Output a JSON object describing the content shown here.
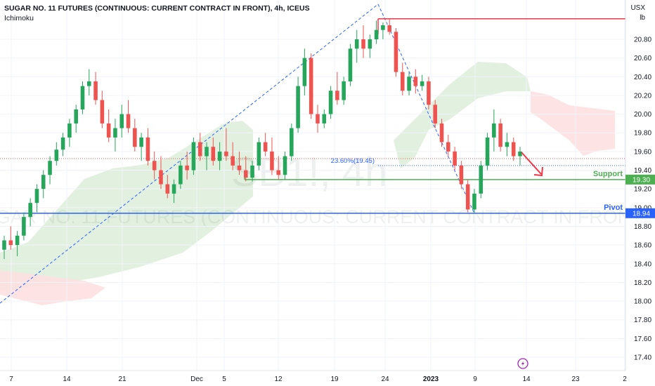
{
  "header": {
    "title": "SUGAR NO. 11 FUTURES (CONTINUOUS: CURRENT CONTRACT IN FRONT), 4h, ICEUS",
    "indicator": "Ichimoku"
  },
  "watermark": {
    "symbol": "SB1!, 4h",
    "description": "SUGAR NO. 11 FUTURES (CONTINUOUS: CURRENT CONTRACT IN FRONT)"
  },
  "axis": {
    "currency": "USX",
    "unit": "lb"
  },
  "colors": {
    "up": "#26a65b",
    "down": "#ef5350",
    "support": "#4caf50",
    "pivot": "#2962ff",
    "resistance": "#f23645",
    "fib": "#2962ff",
    "cloud_bull": "#dff0dc",
    "cloud_bear": "#fde0e0"
  },
  "levels": {
    "support": {
      "label": "Support",
      "price": 19.3,
      "badge": "19.30"
    },
    "pivot": {
      "label": "Pivot",
      "price": 18.94,
      "badge": "18.94"
    },
    "resistance": {
      "price": 21.02
    },
    "fib": {
      "label": "23.60%(19.45)",
      "price": 19.45
    }
  },
  "chart_data": {
    "type": "candlestick",
    "y_ticks": [
      "17.40",
      "17.60",
      "17.80",
      "18.00",
      "18.20",
      "18.40",
      "18.60",
      "18.80",
      "19.00",
      "19.20",
      "19.40",
      "19.60",
      "19.80",
      "20.00",
      "20.20",
      "20.40",
      "20.60",
      "20.80"
    ],
    "x_ticks": [
      "7",
      "14",
      "21",
      "Dec",
      "5",
      "12",
      "19",
      "24",
      "2023",
      "9",
      "14",
      "23",
      "2"
    ],
    "y_range": [
      17.25,
      21.05
    ],
    "series": [
      {
        "o": 18.55,
        "h": 18.7,
        "l": 18.45,
        "c": 18.65
      },
      {
        "o": 18.65,
        "h": 18.8,
        "l": 18.55,
        "c": 18.6
      },
      {
        "o": 18.6,
        "h": 18.75,
        "l": 18.48,
        "c": 18.7
      },
      {
        "o": 18.7,
        "h": 18.95,
        "l": 18.65,
        "c": 18.9
      },
      {
        "o": 18.9,
        "h": 19.1,
        "l": 18.8,
        "c": 19.05
      },
      {
        "o": 19.05,
        "h": 19.25,
        "l": 18.95,
        "c": 19.2
      },
      {
        "o": 19.2,
        "h": 19.4,
        "l": 19.1,
        "c": 19.35
      },
      {
        "o": 19.35,
        "h": 19.55,
        "l": 19.25,
        "c": 19.5
      },
      {
        "o": 19.5,
        "h": 19.7,
        "l": 19.45,
        "c": 19.62
      },
      {
        "o": 19.62,
        "h": 19.8,
        "l": 19.55,
        "c": 19.75
      },
      {
        "o": 19.75,
        "h": 19.95,
        "l": 19.65,
        "c": 19.9
      },
      {
        "o": 19.9,
        "h": 20.1,
        "l": 19.8,
        "c": 20.05
      },
      {
        "o": 20.05,
        "h": 20.35,
        "l": 20.0,
        "c": 20.3
      },
      {
        "o": 20.3,
        "h": 20.48,
        "l": 20.2,
        "c": 20.35
      },
      {
        "o": 20.35,
        "h": 20.45,
        "l": 20.1,
        "c": 20.15
      },
      {
        "o": 20.15,
        "h": 20.25,
        "l": 19.85,
        "c": 19.9
      },
      {
        "o": 19.9,
        "h": 20.05,
        "l": 19.7,
        "c": 19.75
      },
      {
        "o": 19.75,
        "h": 19.95,
        "l": 19.6,
        "c": 19.85
      },
      {
        "o": 19.85,
        "h": 20.1,
        "l": 19.75,
        "c": 20.0
      },
      {
        "o": 20.0,
        "h": 20.15,
        "l": 19.8,
        "c": 19.85
      },
      {
        "o": 19.85,
        "h": 19.95,
        "l": 19.6,
        "c": 19.65
      },
      {
        "o": 19.65,
        "h": 19.8,
        "l": 19.5,
        "c": 19.75
      },
      {
        "o": 19.75,
        "h": 19.85,
        "l": 19.45,
        "c": 19.5
      },
      {
        "o": 19.5,
        "h": 19.6,
        "l": 19.3,
        "c": 19.4
      },
      {
        "o": 19.4,
        "h": 19.55,
        "l": 19.2,
        "c": 19.25
      },
      {
        "o": 19.25,
        "h": 19.35,
        "l": 19.1,
        "c": 19.15
      },
      {
        "o": 19.15,
        "h": 19.3,
        "l": 19.05,
        "c": 19.25
      },
      {
        "o": 19.25,
        "h": 19.5,
        "l": 19.2,
        "c": 19.45
      },
      {
        "o": 19.45,
        "h": 19.6,
        "l": 19.3,
        "c": 19.4
      },
      {
        "o": 19.4,
        "h": 19.75,
        "l": 19.35,
        "c": 19.7
      },
      {
        "o": 19.7,
        "h": 19.8,
        "l": 19.5,
        "c": 19.55
      },
      {
        "o": 19.55,
        "h": 19.7,
        "l": 19.4,
        "c": 19.65
      },
      {
        "o": 19.65,
        "h": 19.75,
        "l": 19.45,
        "c": 19.5
      },
      {
        "o": 19.5,
        "h": 19.7,
        "l": 19.4,
        "c": 19.6
      },
      {
        "o": 19.6,
        "h": 19.85,
        "l": 19.5,
        "c": 19.55
      },
      {
        "o": 19.55,
        "h": 19.7,
        "l": 19.4,
        "c": 19.45
      },
      {
        "o": 19.45,
        "h": 19.6,
        "l": 19.35,
        "c": 19.4
      },
      {
        "o": 19.4,
        "h": 19.55,
        "l": 19.28,
        "c": 19.32
      },
      {
        "o": 19.32,
        "h": 19.5,
        "l": 19.28,
        "c": 19.45
      },
      {
        "o": 19.45,
        "h": 19.75,
        "l": 19.4,
        "c": 19.7
      },
      {
        "o": 19.7,
        "h": 19.8,
        "l": 19.55,
        "c": 19.6
      },
      {
        "o": 19.6,
        "h": 19.75,
        "l": 19.35,
        "c": 19.4
      },
      {
        "o": 19.4,
        "h": 19.55,
        "l": 19.3,
        "c": 19.35
      },
      {
        "o": 19.35,
        "h": 19.6,
        "l": 19.3,
        "c": 19.55
      },
      {
        "o": 19.55,
        "h": 19.9,
        "l": 19.5,
        "c": 19.85
      },
      {
        "o": 19.85,
        "h": 20.4,
        "l": 19.8,
        "c": 20.3
      },
      {
        "o": 20.3,
        "h": 20.7,
        "l": 20.2,
        "c": 20.6
      },
      {
        "o": 20.6,
        "h": 20.65,
        "l": 19.95,
        "c": 20.0
      },
      {
        "o": 20.0,
        "h": 20.1,
        "l": 19.8,
        "c": 19.9
      },
      {
        "o": 19.9,
        "h": 20.05,
        "l": 19.85,
        "c": 20.0
      },
      {
        "o": 20.0,
        "h": 20.3,
        "l": 19.95,
        "c": 20.25
      },
      {
        "o": 20.25,
        "h": 20.45,
        "l": 20.1,
        "c": 20.15
      },
      {
        "o": 20.15,
        "h": 20.4,
        "l": 20.1,
        "c": 20.35
      },
      {
        "o": 20.35,
        "h": 20.75,
        "l": 20.3,
        "c": 20.7
      },
      {
        "o": 20.7,
        "h": 20.9,
        "l": 20.55,
        "c": 20.8
      },
      {
        "o": 20.8,
        "h": 20.95,
        "l": 20.6,
        "c": 20.7
      },
      {
        "o": 20.7,
        "h": 20.85,
        "l": 20.6,
        "c": 20.8
      },
      {
        "o": 20.8,
        "h": 21.0,
        "l": 20.75,
        "c": 20.9
      },
      {
        "o": 20.9,
        "h": 20.98,
        "l": 20.8,
        "c": 20.95
      },
      {
        "o": 20.95,
        "h": 21.02,
        "l": 20.85,
        "c": 20.88
      },
      {
        "o": 20.88,
        "h": 20.92,
        "l": 20.4,
        "c": 20.45
      },
      {
        "o": 20.45,
        "h": 20.55,
        "l": 20.2,
        "c": 20.25
      },
      {
        "o": 20.25,
        "h": 20.45,
        "l": 20.2,
        "c": 20.4
      },
      {
        "o": 20.4,
        "h": 20.48,
        "l": 20.22,
        "c": 20.3
      },
      {
        "o": 20.3,
        "h": 20.42,
        "l": 20.25,
        "c": 20.35
      },
      {
        "o": 20.35,
        "h": 20.4,
        "l": 20.05,
        "c": 20.1
      },
      {
        "o": 20.1,
        "h": 20.15,
        "l": 19.85,
        "c": 19.9
      },
      {
        "o": 19.9,
        "h": 19.95,
        "l": 19.65,
        "c": 19.7
      },
      {
        "o": 19.7,
        "h": 19.78,
        "l": 19.55,
        "c": 19.6
      },
      {
        "o": 19.6,
        "h": 19.65,
        "l": 19.4,
        "c": 19.45
      },
      {
        "o": 19.45,
        "h": 19.5,
        "l": 19.2,
        "c": 19.25
      },
      {
        "o": 19.25,
        "h": 19.3,
        "l": 18.95,
        "c": 18.98
      },
      {
        "o": 18.98,
        "h": 19.2,
        "l": 18.94,
        "c": 19.15
      },
      {
        "o": 19.15,
        "h": 19.5,
        "l": 19.1,
        "c": 19.45
      },
      {
        "o": 19.45,
        "h": 19.8,
        "l": 19.4,
        "c": 19.75
      },
      {
        "o": 19.75,
        "h": 20.05,
        "l": 19.6,
        "c": 19.9
      },
      {
        "o": 19.9,
        "h": 19.95,
        "l": 19.6,
        "c": 19.65
      },
      {
        "o": 19.65,
        "h": 19.8,
        "l": 19.55,
        "c": 19.7
      },
      {
        "o": 19.7,
        "h": 19.75,
        "l": 19.5,
        "c": 19.55
      },
      {
        "o": 19.55,
        "h": 19.65,
        "l": 19.45,
        "c": 19.6
      }
    ]
  }
}
